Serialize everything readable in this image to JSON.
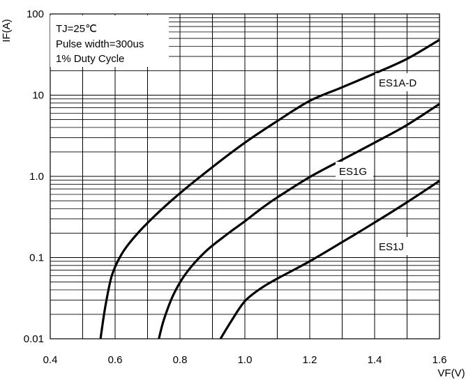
{
  "chart_data": {
    "type": "line",
    "xlabel": "VF(V)",
    "ylabel": "IF(A)",
    "xlim": [
      0.4,
      1.6
    ],
    "ylim": [
      0.01,
      100
    ],
    "yscale": "log",
    "grid": true,
    "x_ticks": [
      "0.4",
      "0.6",
      "0.8",
      "1.0",
      "1.2",
      "1.4",
      "1.6"
    ],
    "y_ticks": [
      "0.01",
      "0.1",
      "1.0",
      "10",
      "100"
    ],
    "legend": {
      "placement": "top-left",
      "lines": [
        "TJ=25℃",
        "Pulse width=300us",
        "1% Duty Cycle"
      ]
    },
    "series": [
      {
        "name": "ES1A-D",
        "x": [
          0.555,
          0.57,
          0.59,
          0.62,
          0.66,
          0.72,
          0.8,
          0.9,
          1.0,
          1.1,
          1.2,
          1.3,
          1.4,
          1.5,
          1.6
        ],
        "y": [
          0.01,
          0.025,
          0.06,
          0.11,
          0.18,
          0.32,
          0.62,
          1.3,
          2.6,
          4.8,
          8.5,
          12.5,
          18.5,
          28,
          48
        ]
      },
      {
        "name": "ES1G",
        "x": [
          0.735,
          0.75,
          0.78,
          0.82,
          0.88,
          0.95,
          1.0,
          1.05,
          1.1,
          1.2,
          1.3,
          1.4,
          1.5,
          1.6
        ],
        "y": [
          0.01,
          0.017,
          0.035,
          0.065,
          0.12,
          0.2,
          0.28,
          0.4,
          0.55,
          0.98,
          1.6,
          2.6,
          4.3,
          7.8
        ]
      },
      {
        "name": "ES1J",
        "x": [
          0.925,
          0.96,
          1.0,
          1.05,
          1.1,
          1.2,
          1.3,
          1.4,
          1.5,
          1.6
        ],
        "y": [
          0.01,
          0.017,
          0.029,
          0.042,
          0.055,
          0.09,
          0.155,
          0.27,
          0.48,
          0.88
        ]
      }
    ]
  }
}
